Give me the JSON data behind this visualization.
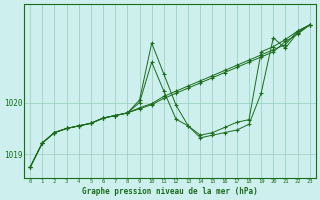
{
  "title": "Graphe pression niveau de la mer (hPa)",
  "xlabel": "Graphe pression niveau de la mer (hPa)",
  "bg_color": "#cdf0ee",
  "grid_color": "#99ccbb",
  "line_color": "#1a6b1a",
  "xlim": [
    -0.5,
    23.5
  ],
  "ylim": [
    1018.55,
    1021.9
  ],
  "yticks": [
    1019,
    1020
  ],
  "xticks": [
    0,
    1,
    2,
    3,
    4,
    5,
    6,
    7,
    8,
    9,
    10,
    11,
    12,
    13,
    14,
    15,
    16,
    17,
    18,
    19,
    20,
    21,
    22,
    23
  ],
  "series": [
    [
      1018.75,
      1019.22,
      1019.42,
      1019.5,
      1019.55,
      1019.6,
      1019.7,
      1019.75,
      1019.8,
      1020.05,
      1021.15,
      1020.55,
      1019.95,
      1019.55,
      1019.32,
      1019.37,
      1019.42,
      1019.47,
      1019.58,
      1020.18,
      1021.25,
      1021.05,
      1021.35,
      1021.5
    ],
    [
      1018.75,
      1019.22,
      1019.42,
      1019.5,
      1019.55,
      1019.6,
      1019.7,
      1019.75,
      1019.8,
      1019.9,
      1019.98,
      1020.12,
      1020.22,
      1020.32,
      1020.42,
      1020.52,
      1020.62,
      1020.72,
      1020.82,
      1020.92,
      1021.02,
      1021.12,
      1021.38,
      1021.5
    ],
    [
      1018.75,
      1019.22,
      1019.42,
      1019.5,
      1019.55,
      1019.6,
      1019.7,
      1019.75,
      1019.8,
      1019.88,
      1019.96,
      1020.08,
      1020.18,
      1020.28,
      1020.38,
      1020.48,
      1020.58,
      1020.68,
      1020.78,
      1020.88,
      1020.98,
      1021.18,
      1021.32,
      1021.5
    ],
    [
      1018.75,
      1019.22,
      1019.42,
      1019.5,
      1019.55,
      1019.6,
      1019.7,
      1019.75,
      1019.8,
      1020.0,
      1020.78,
      1020.22,
      1019.68,
      1019.55,
      1019.37,
      1019.42,
      1019.52,
      1019.62,
      1019.67,
      1020.98,
      1021.08,
      1021.22,
      1021.38,
      1021.5
    ]
  ]
}
